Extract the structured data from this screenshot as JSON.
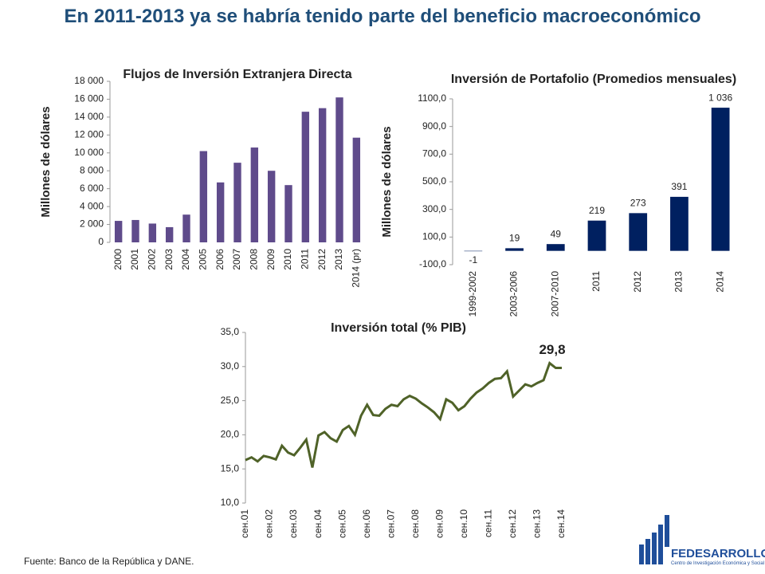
{
  "title": "En 2011-2013 ya se habría tenido parte del beneficio macroeconómico",
  "source": "Fuente: Banco de la República y DANE.",
  "logo": {
    "name": "FEDESARROLLO",
    "tagline": "Centro de Investigación Económica y Social"
  },
  "chart_data": [
    {
      "type": "bar",
      "title": "Flujos de Inversión Extranjera Directa",
      "ylabel": "Millones de dólares",
      "categories": [
        "2000",
        "2001",
        "2002",
        "2003",
        "2004",
        "2005",
        "2006",
        "2007",
        "2008",
        "2009",
        "2010",
        "2011",
        "2012",
        "2013",
        "2014 (pr)"
      ],
      "values": [
        2400,
        2500,
        2100,
        1700,
        3100,
        10200,
        6700,
        8900,
        10600,
        8000,
        6400,
        14600,
        15000,
        16200,
        11700
      ],
      "color": "#5f4b8b",
      "ylim": [
        0,
        18000
      ],
      "yticks": [
        0,
        {
          "value": 2000,
          "label": "2 000"
        },
        {
          "value": 4000,
          "label": "4 000"
        },
        {
          "value": 6000,
          "label": "6 000"
        },
        {
          "value": 8000,
          "label": "8 000"
        },
        {
          "value": 10000,
          "label": "10 000"
        },
        {
          "value": 12000,
          "label": "12 000"
        },
        {
          "value": 14000,
          "label": "14 000"
        },
        {
          "value": 16000,
          "label": "16 000"
        },
        {
          "value": 18000,
          "label": "18 000"
        }
      ]
    },
    {
      "type": "bar",
      "title": "Inversión de Portafolio (Promedios mensuales)",
      "ylabel": "Millones de dólares",
      "categories": [
        "1999-2002",
        "2003-2006",
        "2007-2010",
        "2011",
        "2012",
        "2013",
        "2014"
      ],
      "values": [
        -1,
        19,
        49,
        219,
        273,
        391,
        1036
      ],
      "value_labels": [
        "-1",
        "19",
        "49",
        "219",
        "273",
        "391",
        "1 036"
      ],
      "color": "#002060",
      "ylim": [
        -100,
        1100
      ],
      "yticks": [
        {
          "value": -100,
          "label": "-100,0"
        },
        {
          "value": 100,
          "label": "100,0"
        },
        {
          "value": 300,
          "label": "300,0"
        },
        {
          "value": 500,
          "label": "500,0"
        },
        {
          "value": 700,
          "label": "700,0"
        },
        {
          "value": 900,
          "label": "900,0"
        },
        {
          "value": 1100,
          "label": "1100,0"
        }
      ]
    },
    {
      "type": "line",
      "title": "Inversión total (% PIB)",
      "annotation": "29,8",
      "categories": [
        "сен.01",
        null,
        null,
        null,
        "сен.02",
        null,
        null,
        null,
        "сен.03",
        null,
        null,
        null,
        "сен.04",
        null,
        null,
        null,
        "сен.05",
        null,
        null,
        null,
        "сен.06",
        null,
        null,
        null,
        "сен.07",
        null,
        null,
        null,
        "сен.08",
        null,
        null,
        null,
        "сен.09",
        null,
        null,
        null,
        "сен.10",
        null,
        null,
        null,
        "сен.11",
        null,
        null,
        null,
        "сен.12",
        null,
        null,
        null,
        "сен.13",
        null,
        null,
        null,
        "сен.14"
      ],
      "values": [
        16.3,
        16.7,
        16.1,
        16.9,
        16.7,
        16.4,
        18.4,
        17.4,
        17.0,
        18.1,
        19.3,
        15.2,
        19.9,
        20.4,
        19.5,
        19.0,
        20.7,
        21.3,
        20.0,
        22.8,
        24.4,
        22.9,
        22.8,
        23.8,
        24.4,
        24.2,
        25.2,
        25.7,
        25.3,
        24.6,
        24.0,
        23.3,
        22.3,
        25.2,
        24.7,
        23.6,
        24.2,
        25.3,
        26.2,
        26.8,
        27.6,
        28.2,
        28.3,
        29.3,
        25.6,
        26.5,
        27.4,
        27.1,
        27.6,
        28.0,
        30.5,
        29.8,
        29.8
      ],
      "color": "#4f6228",
      "ylim": [
        10,
        35
      ],
      "yticks": [
        {
          "value": 10,
          "label": "10,0"
        },
        {
          "value": 15,
          "label": "15,0"
        },
        {
          "value": 20,
          "label": "20,0"
        },
        {
          "value": 25,
          "label": "25,0"
        },
        {
          "value": 30,
          "label": "30,0"
        },
        {
          "value": 35,
          "label": "35,0"
        }
      ]
    }
  ]
}
